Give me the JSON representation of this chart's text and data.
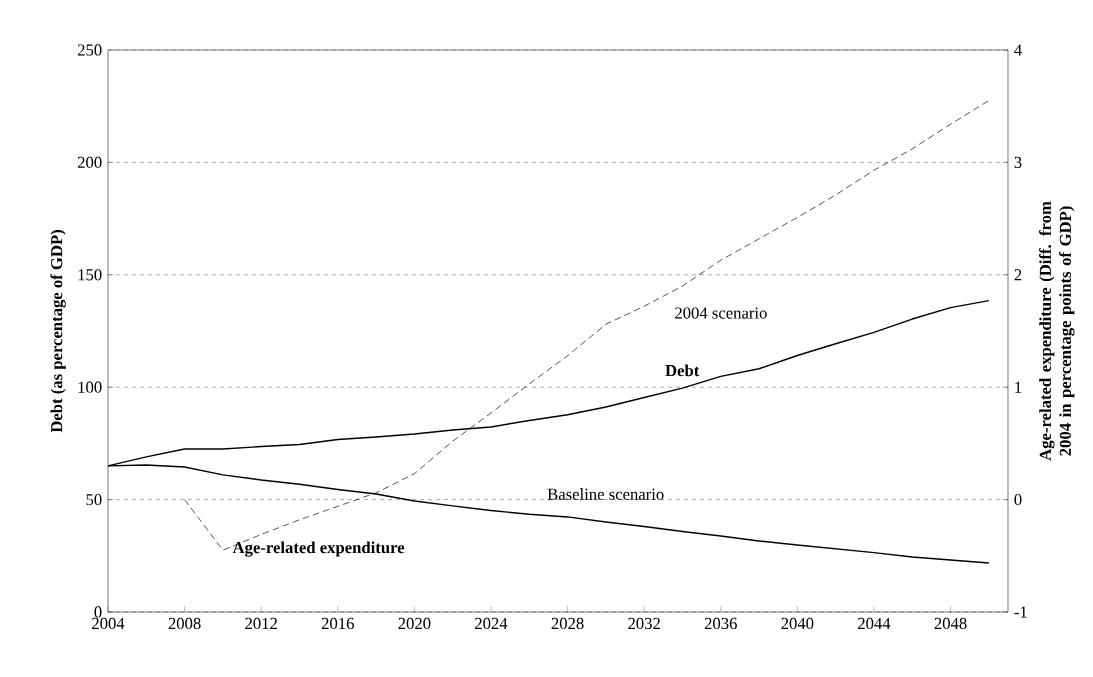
{
  "chart_data": {
    "type": "line",
    "ylabel": "Debt (as percentage of GDP)",
    "y2label": "Age-related  expenditure (Diff. from 2004 in percentage points of GDP)",
    "xlim": [
      2004,
      2051
    ],
    "xticks": [
      2004,
      2008,
      2012,
      2016,
      2020,
      2024,
      2028,
      2032,
      2036,
      2040,
      2044,
      2048
    ],
    "ylim": [
      0,
      250
    ],
    "yticks": [
      0,
      50,
      100,
      150,
      200,
      250
    ],
    "y2lim": [
      -1,
      4
    ],
    "y2ticks": [
      -1,
      0,
      1,
      2,
      3,
      4
    ],
    "grid": "y",
    "series": [
      {
        "color": "#000000",
        "line_style": "solid",
        "x": [
          2004,
          2006,
          2008,
          2010,
          2012,
          2014,
          2016,
          2018,
          2020,
          2022,
          2024,
          2026,
          2028,
          2030,
          2032,
          2034,
          2036,
          2038,
          2040,
          2042,
          2044,
          2046,
          2048,
          2050
        ],
        "values": [
          65,
          69,
          72.5,
          72.5,
          73.6,
          74.5,
          76.7,
          77.8,
          79.2,
          81,
          82.3,
          85.2,
          87.7,
          91.2,
          95.4,
          99.6,
          104.8,
          108.2,
          114.1,
          119.3,
          124.4,
          130.3,
          135.4,
          138.5
        ]
      },
      {
        "color": "#000000",
        "line_style": "solid",
        "x": [
          2004,
          2006,
          2008,
          2010,
          2012,
          2014,
          2016,
          2018,
          2020,
          2022,
          2024,
          2026,
          2028,
          2030,
          2032,
          2034,
          2036,
          2038,
          2040,
          2042,
          2044,
          2046,
          2048,
          2050
        ],
        "values": [
          65,
          65.4,
          64.5,
          61,
          58.7,
          56.8,
          54.5,
          52.5,
          49.4,
          47.2,
          45.1,
          43.5,
          42.3,
          40,
          38,
          35.8,
          33.8,
          31.6,
          29.8,
          28.1,
          26.4,
          24.5,
          23.1,
          21.8
        ]
      },
      {
        "color": "#000000",
        "line_style": "dashed",
        "axis": "y2",
        "x": [
          2008,
          2010,
          2012,
          2014,
          2016,
          2018,
          2020,
          2022,
          2024,
          2026,
          2028,
          2030,
          2032,
          2034,
          2036,
          2038,
          2040,
          2042,
          2044,
          2046,
          2048,
          2050
        ],
        "values": [
          0,
          -0.45,
          -0.31,
          -0.18,
          -0.06,
          0.06,
          0.23,
          0.52,
          0.77,
          1.03,
          1.28,
          1.56,
          1.72,
          1.9,
          2.13,
          2.32,
          2.51,
          2.71,
          2.93,
          3.12,
          3.34,
          3.55
        ]
      }
    ],
    "annotations": [
      "2004 scenario",
      "Baseline scenario",
      "Debt",
      "Age-related expenditure"
    ]
  }
}
